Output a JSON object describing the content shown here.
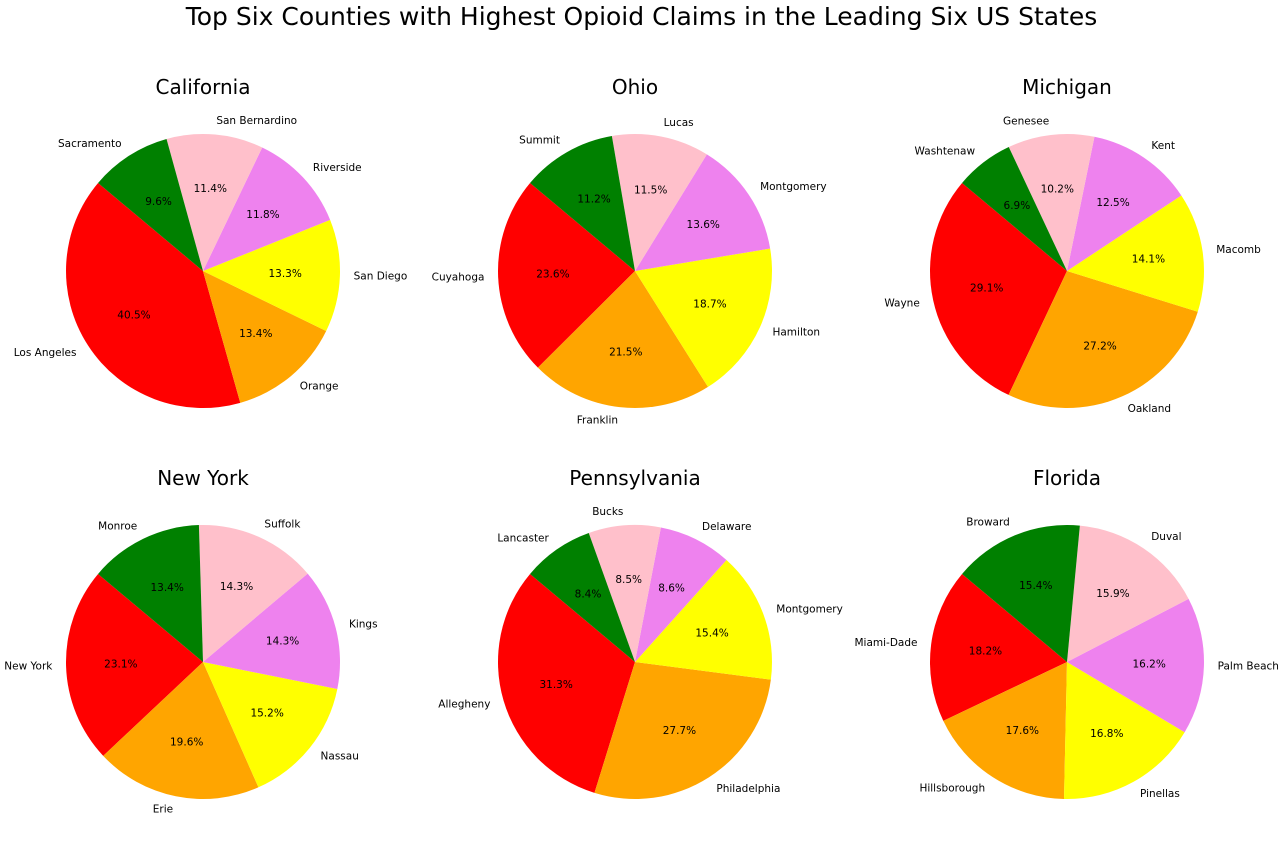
{
  "title": "Top Six Counties with Highest Opioid Claims in the Leading Six US States",
  "chart_data": [
    {
      "type": "pie",
      "title": "California",
      "labels": [
        "Los Angeles",
        "Orange",
        "San Diego",
        "Riverside",
        "San Bernardino",
        "Sacramento"
      ],
      "values": [
        40.5,
        13.4,
        13.3,
        11.8,
        11.4,
        9.6
      ],
      "pct_labels": [
        "40.5%",
        "13.4%",
        "13.3%",
        "11.8%",
        "11.4%",
        "9.6%"
      ],
      "colors": [
        "#ff0000",
        "#ffa500",
        "#ffff00",
        "#ee82ee",
        "#ffc0cb",
        "#008000"
      ]
    },
    {
      "type": "pie",
      "title": "Ohio",
      "labels": [
        "Cuyahoga",
        "Franklin",
        "Hamilton",
        "Montgomery",
        "Lucas",
        "Summit"
      ],
      "values": [
        23.6,
        21.5,
        18.7,
        13.6,
        11.5,
        11.2
      ],
      "pct_labels": [
        "23.6%",
        "21.5%",
        "18.7%",
        "13.6%",
        "11.5%",
        "11.2%"
      ],
      "colors": [
        "#ff0000",
        "#ffa500",
        "#ffff00",
        "#ee82ee",
        "#ffc0cb",
        "#008000"
      ]
    },
    {
      "type": "pie",
      "title": "Michigan",
      "labels": [
        "Wayne",
        "Oakland",
        "Macomb",
        "Kent",
        "Genesee",
        "Washtenaw"
      ],
      "values": [
        29.1,
        27.2,
        14.1,
        12.5,
        10.2,
        6.9
      ],
      "pct_labels": [
        "29.1%",
        "27.2%",
        "14.1%",
        "12.5%",
        "10.2%",
        "6.9%"
      ],
      "colors": [
        "#ff0000",
        "#ffa500",
        "#ffff00",
        "#ee82ee",
        "#ffc0cb",
        "#008000"
      ]
    },
    {
      "type": "pie",
      "title": "New York",
      "labels": [
        "New York",
        "Erie",
        "Nassau",
        "Kings",
        "Suffolk",
        "Monroe"
      ],
      "values": [
        23.1,
        19.6,
        15.2,
        14.3,
        14.3,
        13.4
      ],
      "pct_labels": [
        "23.1%",
        "19.6%",
        "15.2%",
        "14.3%",
        "14.3%",
        "13.4%"
      ],
      "colors": [
        "#ff0000",
        "#ffa500",
        "#ffff00",
        "#ee82ee",
        "#ffc0cb",
        "#008000"
      ]
    },
    {
      "type": "pie",
      "title": "Pennsylvania",
      "labels": [
        "Allegheny",
        "Philadelphia",
        "Montgomery",
        "Delaware",
        "Bucks",
        "Lancaster"
      ],
      "values": [
        31.3,
        27.7,
        15.4,
        8.6,
        8.5,
        8.4
      ],
      "pct_labels": [
        "31.3%",
        "27.7%",
        "15.4%",
        "8.6%",
        "8.5%",
        "8.4%"
      ],
      "colors": [
        "#ff0000",
        "#ffa500",
        "#ffff00",
        "#ee82ee",
        "#ffc0cb",
        "#008000"
      ]
    },
    {
      "type": "pie",
      "title": "Florida",
      "labels": [
        "Miami-Dade",
        "Hillsborough",
        "Pinellas",
        "Palm Beach",
        "Duval",
        "Broward"
      ],
      "values": [
        18.2,
        17.6,
        16.8,
        16.2,
        15.9,
        15.4
      ],
      "pct_labels": [
        "18.2%",
        "17.6%",
        "16.8%",
        "16.2%",
        "15.9%",
        "15.4%"
      ],
      "colors": [
        "#ff0000",
        "#ffa500",
        "#ffff00",
        "#ee82ee",
        "#ffc0cb",
        "#008000"
      ]
    }
  ]
}
